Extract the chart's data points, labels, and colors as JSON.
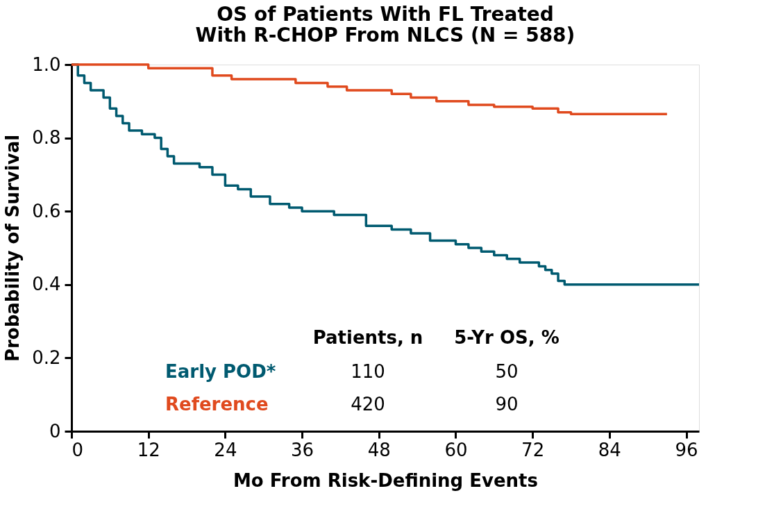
{
  "chart_data": {
    "type": "step",
    "title": [
      "OS of Patients With FL Treated",
      "With R-CHOP From NLCS (N = 588)"
    ],
    "xlabel": "Mo From Risk-Defining Events",
    "ylabel": "Probability of Survival",
    "xlim": [
      0,
      98
    ],
    "xticks": [
      0,
      12,
      24,
      36,
      48,
      60,
      72,
      84,
      96
    ],
    "ylim": [
      0,
      1.0
    ],
    "yticks": [
      {
        "value": 0,
        "label": "0"
      },
      0.2,
      0.4,
      0.6,
      0.8,
      {
        "value": 1.0,
        "label": "1.0"
      }
    ],
    "grid": false,
    "legend": "bottom",
    "line_style": "solid",
    "annotations": [
      "Patients, n",
      "5-Yr OS, %",
      "110",
      "50",
      "420",
      "90"
    ],
    "series": [
      {
        "name": "Early POD*",
        "color": "#005a70",
        "x": [
          0,
          1,
          2,
          3,
          5,
          6,
          7,
          8,
          9,
          11,
          13,
          14,
          15,
          16,
          20,
          22,
          24,
          26,
          28,
          31,
          34,
          36,
          41,
          46,
          50,
          53,
          56,
          60,
          62,
          64,
          66,
          68,
          70,
          73,
          74,
          75,
          76,
          77,
          98
        ],
        "values": [
          1.0,
          0.97,
          0.95,
          0.93,
          0.91,
          0.88,
          0.86,
          0.84,
          0.82,
          0.81,
          0.8,
          0.77,
          0.75,
          0.73,
          0.72,
          0.7,
          0.67,
          0.66,
          0.64,
          0.62,
          0.61,
          0.6,
          0.59,
          0.56,
          0.55,
          0.54,
          0.52,
          0.51,
          0.5,
          0.49,
          0.48,
          0.47,
          0.46,
          0.45,
          0.44,
          0.43,
          0.41,
          0.4,
          0.4
        ]
      },
      {
        "name": "Reference",
        "color": "#e04a1e",
        "x": [
          0,
          12,
          22,
          25,
          35,
          40,
          43,
          50,
          53,
          57,
          62,
          66,
          72,
          76,
          78,
          93
        ],
        "values": [
          1.0,
          0.99,
          0.97,
          0.96,
          0.95,
          0.94,
          0.93,
          0.92,
          0.91,
          0.9,
          0.89,
          0.885,
          0.88,
          0.87,
          0.865,
          0.865
        ]
      }
    ]
  }
}
